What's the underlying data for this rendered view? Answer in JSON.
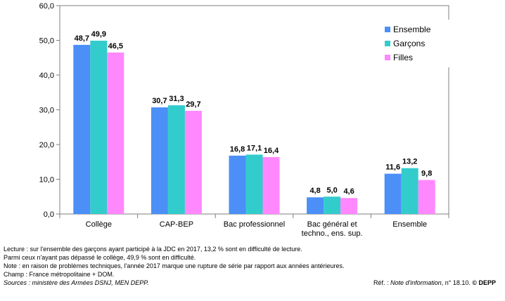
{
  "chart_data": {
    "type": "bar",
    "categories": [
      "Collège",
      "CAP-BEP",
      "Bac professionnel",
      "Bac général et techno., ens. sup.",
      "Ensemble"
    ],
    "category_lines": [
      [
        "Collège"
      ],
      [
        "CAP-BEP"
      ],
      [
        "Bac professionnel"
      ],
      [
        "Bac général et",
        "techno., ens. sup."
      ],
      [
        "Ensemble"
      ]
    ],
    "series": [
      {
        "name": "Ensemble",
        "values": [
          48.7,
          30.7,
          16.8,
          4.8,
          11.6
        ],
        "labels": [
          "48,7",
          "30,7",
          "16,8",
          "4,8",
          "11,6"
        ],
        "color": "#4b8ff7"
      },
      {
        "name": "Garçons",
        "values": [
          49.9,
          31.3,
          17.1,
          5.0,
          13.2
        ],
        "labels": [
          "49,9",
          "31,3",
          "17,1",
          "5,0",
          "13,2"
        ],
        "color": "#33cccc"
      },
      {
        "name": "Filles",
        "values": [
          46.5,
          29.7,
          16.4,
          4.6,
          9.8
        ],
        "labels": [
          "46,5",
          "29,7",
          "16,4",
          "4,6",
          "9,8"
        ],
        "color": "#ff88ff"
      }
    ],
    "ylim": [
      0,
      60
    ],
    "yticks": [
      0,
      10,
      20,
      30,
      40,
      50,
      60
    ],
    "ytick_labels": [
      "0,0",
      "10,0",
      "20,0",
      "30,0",
      "40,0",
      "50,0",
      "60,0"
    ],
    "grid": false,
    "legend_position": "right"
  },
  "notes": {
    "line1": "Lecture : sur l'ensemble des garçons ayant participé à la JDC en 2017, 13,2 % sont en difficulté de lecture.",
    "line2": "Parmi ceux n'ayant pas dépassé le collège, 49,9 % sont en difficulté.",
    "line3": "Note : en raison de problèmes techniques, l'année 2017 marque une rupture de série par rapport aux années antérieures.",
    "line4": "Champ : France métropolitaine + DOM.",
    "sources": "Sources : ministère des Armées   DSNJ, MEN DEPP.",
    "ref_prefix": "Réf. : ",
    "ref_italic": "Note d'information",
    "ref_suffix": ", n° 18.10. ",
    "ref_bold": "© DEPP"
  }
}
